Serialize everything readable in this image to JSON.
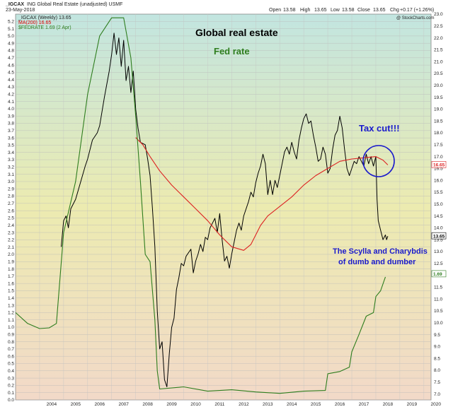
{
  "header": {
    "symbol": "_IGCAX",
    "description": "ING Global Real Estate (unadjusted)  USMF",
    "date": "23-May-2018",
    "open_label": "Open",
    "open": "13.58",
    "high_label": "High",
    "high": "13.65",
    "low_label": "Low",
    "low": "13.58",
    "close_label": "Close",
    "close": "13.65",
    "chg_label": "Chg",
    "chg": "+0.17 (+1.26%)",
    "watermark": "@ StockCharts.com"
  },
  "legend": [
    {
      "text": "_IGCAX (Weekly) 13.65",
      "color": "#000000"
    },
    {
      "text": "MA(200) 16.65",
      "color": "#dd0000"
    },
    {
      "text": "$FEDRATE 1.69 (2 Apr)",
      "color": "#2e7d1e"
    }
  ],
  "annotations": {
    "title1": "Global real estate",
    "title2": "Fed rate",
    "taxcut": "Tax cut!!!",
    "scylla1": "The Scylla and Charybdis",
    "scylla2": "of dumb and dumber"
  },
  "colors": {
    "price": "#000000",
    "ma": "#dd2222",
    "fed": "#2e7d1e",
    "annotation_blue": "#1a1acc",
    "title_black": "#000000",
    "title_green": "#2e7d1e",
    "bg_top": "#c2e5e0",
    "bg_mid": "#ecebb0",
    "bg_bottom": "#f2d9c8"
  },
  "chart_data": {
    "type": "line",
    "x_ticks": [
      "2004",
      "2005",
      "2006",
      "2007",
      "2008",
      "2009",
      "2010",
      "2011",
      "2012",
      "2013",
      "2014",
      "2015",
      "2016",
      "2017",
      "2018",
      "2019",
      "2020"
    ],
    "left_axis": {
      "label": "",
      "range": [
        0,
        5.3
      ],
      "ticks": [
        "0.0",
        "0.1",
        "0.2",
        "0.3",
        "0.4",
        "0.5",
        "0.6",
        "0.7",
        "0.8",
        "0.9",
        "1.0",
        "1.1",
        "1.2",
        "1.3",
        "1.4",
        "1.5",
        "1.6",
        "1.7",
        "1.8",
        "1.9",
        "2.0",
        "2.1",
        "2.2",
        "2.3",
        "2.4",
        "2.5",
        "2.6",
        "2.7",
        "2.8",
        "2.9",
        "3.0",
        "3.1",
        "3.2",
        "3.3",
        "3.4",
        "3.5",
        "3.6",
        "3.7",
        "3.8",
        "3.9",
        "4.0",
        "4.1",
        "4.2",
        "4.3",
        "4.4",
        "4.5",
        "4.6",
        "4.7",
        "4.8",
        "4.9",
        "5.0",
        "5.1",
        "5.2"
      ]
    },
    "right_axis": {
      "label": "",
      "range": [
        6.75,
        23.0
      ],
      "ticks": [
        "7.0",
        "7.5",
        "8.0",
        "8.5",
        "9.0",
        "9.5",
        "10.0",
        "10.5",
        "11.0",
        "11.5",
        "12.0",
        "12.5",
        "13.0",
        "13.5",
        "14.0",
        "14.5",
        "15.0",
        "15.5",
        "16.0",
        "16.5",
        "17.0",
        "17.5",
        "18.0",
        "18.5",
        "19.0",
        "19.5",
        "20.0",
        "20.5",
        "21.0",
        "21.5",
        "22.0",
        "22.5",
        "23.0"
      ]
    },
    "price_last_label": "13.65",
    "ma_last_label": "16.65",
    "fed_last_label": "1.69",
    "series": [
      {
        "name": "_IGCAX (Weekly) 13.65",
        "axis": "right",
        "points": [
          [
            2004.9,
            13.2
          ],
          [
            2005.0,
            14.3
          ],
          [
            2005.1,
            14.5
          ],
          [
            2005.2,
            14.0
          ],
          [
            2005.3,
            14.8
          ],
          [
            2005.5,
            15.2
          ],
          [
            2005.7,
            15.9
          ],
          [
            2005.9,
            16.6
          ],
          [
            2006.0,
            16.9
          ],
          [
            2006.2,
            17.7
          ],
          [
            2006.4,
            18.0
          ],
          [
            2006.5,
            18.3
          ],
          [
            2006.7,
            19.5
          ],
          [
            2006.9,
            20.6
          ],
          [
            2007.0,
            21.3
          ],
          [
            2007.1,
            22.2
          ],
          [
            2007.2,
            21.3
          ],
          [
            2007.3,
            22.0
          ],
          [
            2007.4,
            20.8
          ],
          [
            2007.5,
            21.9
          ],
          [
            2007.6,
            20.2
          ],
          [
            2007.7,
            20.8
          ],
          [
            2007.8,
            19.7
          ],
          [
            2007.9,
            20.6
          ],
          [
            2008.0,
            19.0
          ],
          [
            2008.1,
            18.2
          ],
          [
            2008.2,
            17.6
          ],
          [
            2008.4,
            17.5
          ],
          [
            2008.5,
            16.9
          ],
          [
            2008.6,
            16.2
          ],
          [
            2008.7,
            14.8
          ],
          [
            2008.8,
            13.2
          ],
          [
            2008.9,
            10.5
          ],
          [
            2009.0,
            8.9
          ],
          [
            2009.1,
            9.2
          ],
          [
            2009.2,
            7.6
          ],
          [
            2009.3,
            7.3
          ],
          [
            2009.4,
            8.7
          ],
          [
            2009.5,
            9.8
          ],
          [
            2009.6,
            10.2
          ],
          [
            2009.7,
            11.4
          ],
          [
            2009.8,
            11.9
          ],
          [
            2009.9,
            12.5
          ],
          [
            2010.0,
            12.4
          ],
          [
            2010.1,
            12.8
          ],
          [
            2010.3,
            13.1
          ],
          [
            2010.4,
            12.1
          ],
          [
            2010.5,
            12.6
          ],
          [
            2010.6,
            12.9
          ],
          [
            2010.7,
            13.3
          ],
          [
            2010.8,
            13.0
          ],
          [
            2010.9,
            13.6
          ],
          [
            2011.0,
            13.5
          ],
          [
            2011.1,
            14.0
          ],
          [
            2011.2,
            14.2
          ],
          [
            2011.3,
            14.4
          ],
          [
            2011.4,
            13.8
          ],
          [
            2011.5,
            14.6
          ],
          [
            2011.6,
            13.5
          ],
          [
            2011.7,
            12.6
          ],
          [
            2011.8,
            12.8
          ],
          [
            2011.9,
            12.3
          ],
          [
            2012.0,
            12.9
          ],
          [
            2012.1,
            13.4
          ],
          [
            2012.2,
            13.9
          ],
          [
            2012.3,
            14.2
          ],
          [
            2012.4,
            13.9
          ],
          [
            2012.5,
            14.5
          ],
          [
            2012.6,
            14.8
          ],
          [
            2012.7,
            15.1
          ],
          [
            2012.8,
            15.5
          ],
          [
            2012.9,
            15.3
          ],
          [
            2013.0,
            15.9
          ],
          [
            2013.1,
            16.3
          ],
          [
            2013.2,
            16.6
          ],
          [
            2013.3,
            17.1
          ],
          [
            2013.4,
            16.7
          ],
          [
            2013.5,
            15.4
          ],
          [
            2013.6,
            16.0
          ],
          [
            2013.7,
            15.4
          ],
          [
            2013.8,
            16.0
          ],
          [
            2013.9,
            15.7
          ],
          [
            2014.0,
            16.2
          ],
          [
            2014.1,
            16.7
          ],
          [
            2014.2,
            17.2
          ],
          [
            2014.3,
            17.4
          ],
          [
            2014.4,
            17.1
          ],
          [
            2014.5,
            17.6
          ],
          [
            2014.6,
            17.2
          ],
          [
            2014.7,
            16.9
          ],
          [
            2014.8,
            17.7
          ],
          [
            2014.9,
            18.2
          ],
          [
            2015.0,
            18.6
          ],
          [
            2015.1,
            18.8
          ],
          [
            2015.2,
            18.4
          ],
          [
            2015.3,
            18.5
          ],
          [
            2015.4,
            17.9
          ],
          [
            2015.5,
            17.4
          ],
          [
            2015.6,
            16.8
          ],
          [
            2015.7,
            16.9
          ],
          [
            2015.8,
            17.4
          ],
          [
            2015.9,
            17.1
          ],
          [
            2016.0,
            16.3
          ],
          [
            2016.1,
            16.5
          ],
          [
            2016.2,
            17.3
          ],
          [
            2016.3,
            17.9
          ],
          [
            2016.4,
            18.1
          ],
          [
            2016.5,
            18.7
          ],
          [
            2016.6,
            18.2
          ],
          [
            2016.7,
            17.3
          ],
          [
            2016.8,
            16.5
          ],
          [
            2016.9,
            16.2
          ],
          [
            2017.0,
            16.5
          ],
          [
            2017.1,
            16.8
          ],
          [
            2017.2,
            16.7
          ],
          [
            2017.3,
            17.0
          ],
          [
            2017.4,
            16.8
          ],
          [
            2017.5,
            16.6
          ],
          [
            2017.6,
            17.1
          ],
          [
            2017.7,
            16.7
          ],
          [
            2017.8,
            17.0
          ],
          [
            2017.9,
            16.6
          ],
          [
            2018.0,
            17.0
          ],
          [
            2018.05,
            15.2
          ],
          [
            2018.1,
            14.3
          ],
          [
            2018.2,
            13.9
          ],
          [
            2018.3,
            13.5
          ],
          [
            2018.4,
            13.7
          ],
          [
            2018.45,
            13.5
          ],
          [
            2018.5,
            13.65
          ]
        ]
      },
      {
        "name": "MA(200) 16.65",
        "axis": "right",
        "points": [
          [
            2008.0,
            17.8
          ],
          [
            2008.3,
            17.5
          ],
          [
            2008.6,
            17.0
          ],
          [
            2009.0,
            16.4
          ],
          [
            2009.5,
            15.8
          ],
          [
            2010.0,
            15.3
          ],
          [
            2010.5,
            14.8
          ],
          [
            2011.0,
            14.3
          ],
          [
            2011.5,
            13.7
          ],
          [
            2012.0,
            13.2
          ],
          [
            2012.5,
            13.05
          ],
          [
            2012.8,
            13.3
          ],
          [
            2013.0,
            13.7
          ],
          [
            2013.2,
            14.1
          ],
          [
            2013.5,
            14.5
          ],
          [
            2014.0,
            14.9
          ],
          [
            2014.5,
            15.3
          ],
          [
            2015.0,
            15.8
          ],
          [
            2015.5,
            16.2
          ],
          [
            2016.0,
            16.5
          ],
          [
            2016.5,
            16.8
          ],
          [
            2017.0,
            16.9
          ],
          [
            2017.5,
            16.95
          ],
          [
            2018.0,
            17.0
          ],
          [
            2018.3,
            16.85
          ],
          [
            2018.5,
            16.65
          ]
        ]
      },
      {
        "name": "$FEDRATE 1.69 (2 Apr)",
        "axis": "left",
        "points": [
          [
            2003.0,
            1.2
          ],
          [
            2003.5,
            1.05
          ],
          [
            2004.0,
            0.98
          ],
          [
            2004.4,
            0.99
          ],
          [
            2004.7,
            1.05
          ],
          [
            2005.0,
            2.3
          ],
          [
            2005.5,
            3.0
          ],
          [
            2006.0,
            4.2
          ],
          [
            2006.5,
            5.0
          ],
          [
            2007.0,
            5.25
          ],
          [
            2007.5,
            5.25
          ],
          [
            2007.8,
            4.7
          ],
          [
            2008.0,
            3.9
          ],
          [
            2008.2,
            3.0
          ],
          [
            2008.4,
            2.0
          ],
          [
            2008.6,
            1.9
          ],
          [
            2008.8,
            1.1
          ],
          [
            2008.9,
            0.4
          ],
          [
            2009.0,
            0.15
          ],
          [
            2010.0,
            0.18
          ],
          [
            2011.0,
            0.12
          ],
          [
            2012.0,
            0.14
          ],
          [
            2013.0,
            0.11
          ],
          [
            2014.0,
            0.09
          ],
          [
            2015.0,
            0.12
          ],
          [
            2015.9,
            0.13
          ],
          [
            2016.0,
            0.36
          ],
          [
            2016.5,
            0.39
          ],
          [
            2016.9,
            0.45
          ],
          [
            2017.0,
            0.66
          ],
          [
            2017.3,
            0.9
          ],
          [
            2017.6,
            1.15
          ],
          [
            2017.9,
            1.2
          ],
          [
            2018.0,
            1.42
          ],
          [
            2018.2,
            1.5
          ],
          [
            2018.4,
            1.69
          ]
        ]
      }
    ]
  }
}
